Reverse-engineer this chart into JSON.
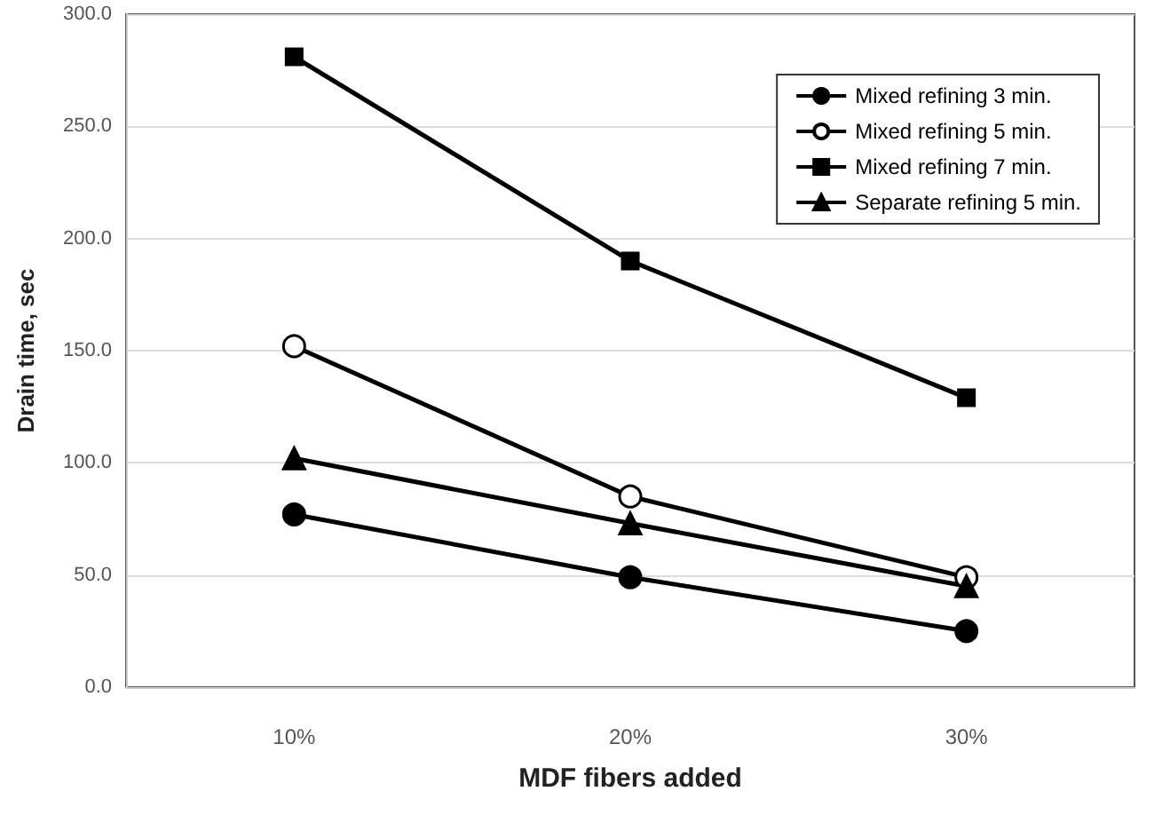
{
  "chart_data": {
    "type": "line",
    "xlabel": "MDF fibers added",
    "ylabel": "Drain time, sec",
    "categories": [
      "10%",
      "20%",
      "30%"
    ],
    "series": [
      {
        "name": "Mixed refining 3 min.",
        "color": "#000000",
        "marker": "circle",
        "values": [
          77,
          49,
          25
        ]
      },
      {
        "name": "Mixed refining 5 min.",
        "color": "#000000",
        "marker": "circle",
        "values": [
          152,
          85,
          49
        ]
      },
      {
        "name": "Mixed refining 7 min.",
        "color": "#000000",
        "marker": "square",
        "values": [
          281,
          190,
          129
        ]
      },
      {
        "name": "Separate refining 5 min.",
        "color": "#000000",
        "marker": "triangle",
        "values": [
          102,
          73,
          45
        ]
      }
    ],
    "ylim": [
      0,
      300
    ],
    "yticks": [
      {
        "value": 0,
        "label": "0.0"
      },
      {
        "value": 50,
        "label": "50.0"
      },
      {
        "value": 100,
        "label": "100.0"
      },
      {
        "value": 150,
        "label": "150.0"
      },
      {
        "value": 200,
        "label": "200.0"
      },
      {
        "value": 250,
        "label": "250.0"
      },
      {
        "value": 300,
        "label": "300.0"
      }
    ],
    "grid": "y",
    "legend": "top right",
    "line_style": "solid"
  }
}
